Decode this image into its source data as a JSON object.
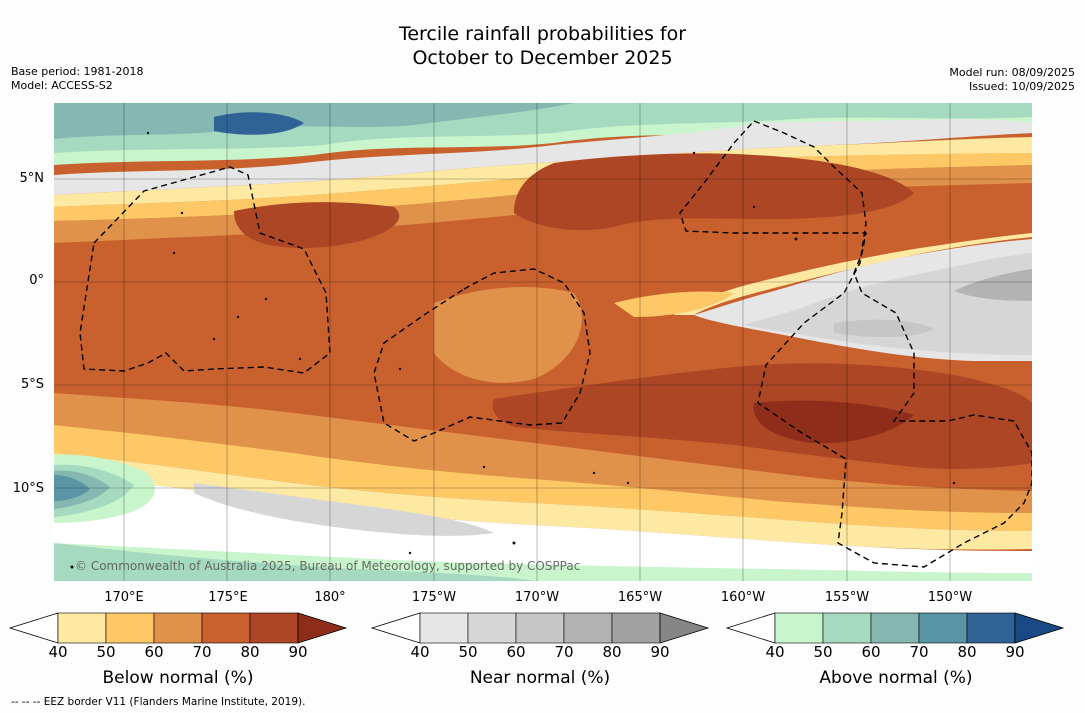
{
  "title": {
    "line1": "Tercile rainfall probabilities for",
    "line2": "October to December 2025"
  },
  "meta": {
    "base_period": "Base period: 1981-2018",
    "model": "Model: ACCESS-S2",
    "model_run": "Model run: 08/09/2025",
    "issued": "Issued: 10/09/2025"
  },
  "map": {
    "credit": "© Commonwealth of Australia 2025, Bureau of Meteorology, supported by COSPPac",
    "lat_labels": [
      "5°N",
      "0°",
      "5°S",
      "10°S"
    ],
    "lon_labels": [
      "170°E",
      "175°E",
      "180°",
      "175°W",
      "170°W",
      "165°W",
      "160°W",
      "155°W",
      "150°W"
    ]
  },
  "colorbars": [
    {
      "label": "Below normal (%)",
      "ticks": [
        "40",
        "50",
        "60",
        "70",
        "80",
        "90"
      ],
      "colors": [
        "#ffffff",
        "#fee9a3",
        "#fdc865",
        "#e0924a",
        "#c9612f",
        "#ac4625",
        "#8f2d1b"
      ]
    },
    {
      "label": "Near normal (%)",
      "ticks": [
        "40",
        "50",
        "60",
        "70",
        "80",
        "90"
      ],
      "colors": [
        "#ffffff",
        "#e6e6e6",
        "#d6d6d6",
        "#c6c6c6",
        "#b3b3b3",
        "#a1a1a1",
        "#858585"
      ]
    },
    {
      "label": "Above normal (%)",
      "ticks": [
        "40",
        "50",
        "60",
        "70",
        "80",
        "90"
      ],
      "colors": [
        "#ffffff",
        "#c8f5cc",
        "#a6dac0",
        "#84b8b0",
        "#5a95a6",
        "#2f6396",
        "#1a4a85"
      ]
    }
  ],
  "footer": "--  --  -- EEZ border V11 (Flanders Marine Institute, 2019)."
}
